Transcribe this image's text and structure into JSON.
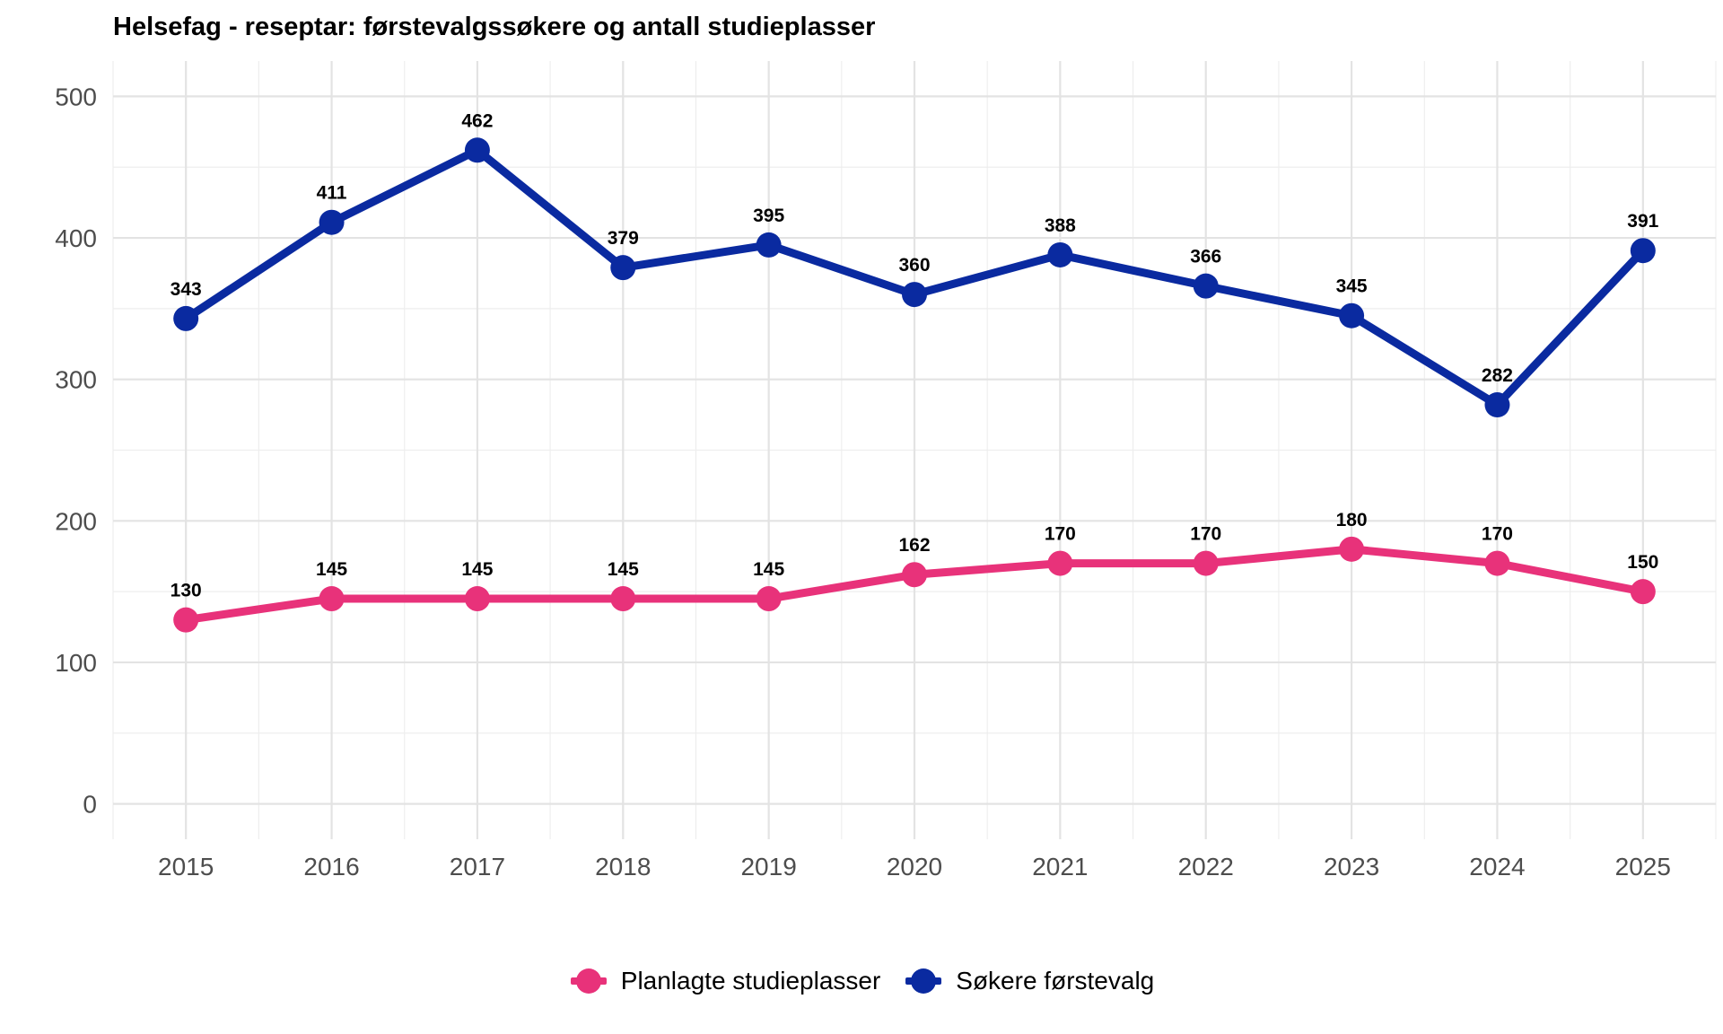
{
  "chart_data": {
    "type": "line",
    "title": "Helsefag - reseptar: førstevalgssøkere og antall studieplasser",
    "xlabel": "",
    "ylabel": "",
    "x": [
      2015,
      2016,
      2017,
      2018,
      2019,
      2020,
      2021,
      2022,
      2023,
      2024,
      2025
    ],
    "ylim": [
      -25,
      525
    ],
    "yticks": [
      0,
      100,
      200,
      300,
      400,
      500
    ],
    "grid": true,
    "legend_position": "bottom",
    "series": [
      {
        "name": "Planlagte studieplasser",
        "color": "#E8327A",
        "values": [
          130,
          145,
          145,
          145,
          145,
          162,
          170,
          170,
          180,
          170,
          150
        ]
      },
      {
        "name": "Søkere førstevalg",
        "color": "#0A2AA0",
        "values": [
          343,
          411,
          462,
          379,
          395,
          360,
          388,
          366,
          345,
          282,
          391
        ]
      }
    ]
  }
}
